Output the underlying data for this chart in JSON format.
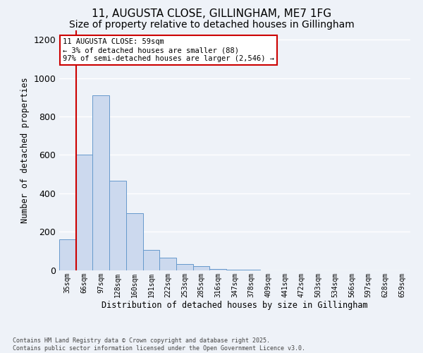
{
  "title1": "11, AUGUSTA CLOSE, GILLINGHAM, ME7 1FG",
  "title2": "Size of property relative to detached houses in Gillingham",
  "xlabel": "Distribution of detached houses by size in Gillingham",
  "ylabel": "Number of detached properties",
  "bar_color": "#ccd9ee",
  "bar_edge_color": "#6699cc",
  "categories": [
    "35sqm",
    "66sqm",
    "97sqm",
    "128sqm",
    "160sqm",
    "191sqm",
    "222sqm",
    "253sqm",
    "285sqm",
    "316sqm",
    "347sqm",
    "378sqm",
    "409sqm",
    "441sqm",
    "472sqm",
    "503sqm",
    "534sqm",
    "566sqm",
    "597sqm",
    "628sqm",
    "659sqm"
  ],
  "values": [
    160,
    600,
    910,
    465,
    295,
    105,
    65,
    30,
    20,
    5,
    2,
    1,
    0,
    0,
    0,
    0,
    0,
    0,
    0,
    0,
    0
  ],
  "ylim": [
    0,
    1250
  ],
  "yticks": [
    0,
    200,
    400,
    600,
    800,
    1000,
    1200
  ],
  "vline_color": "#cc0000",
  "annotation_text": "11 AUGUSTA CLOSE: 59sqm\n← 3% of detached houses are smaller (88)\n97% of semi-detached houses are larger (2,546) →",
  "annotation_box_color": "#ffffff",
  "annotation_box_edge": "#cc0000",
  "footnote": "Contains HM Land Registry data © Crown copyright and database right 2025.\nContains public sector information licensed under the Open Government Licence v3.0.",
  "bg_color": "#eef2f8",
  "grid_color": "#ffffff",
  "title_fontsize": 11,
  "subtitle_fontsize": 10
}
